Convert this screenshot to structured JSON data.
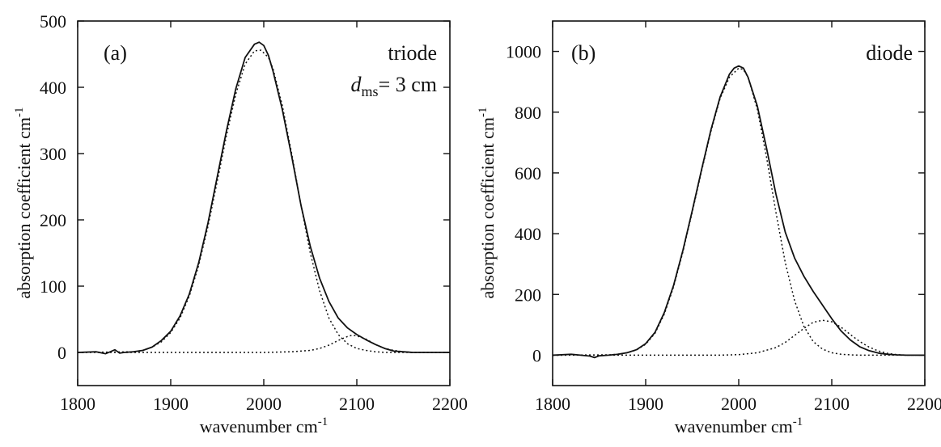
{
  "chart_data": [
    {
      "type": "line",
      "panel_label": "(a)",
      "annotation_line1": "triode",
      "annotation_d": "d",
      "annotation_sub": "ms",
      "annotation_rest": "= 3 cm",
      "xlabel": "wavenumber cm",
      "xlabel_sup": "-1",
      "ylabel": "absorption coefficient cm",
      "ylabel_sup": "-1",
      "xlim": [
        1800,
        2200
      ],
      "ylim": [
        -50,
        500
      ],
      "xticks": [
        1800,
        1900,
        2000,
        2100,
        2200
      ],
      "xtick_labels": [
        "1800",
        "1900",
        "2000",
        "2100",
        "2200"
      ],
      "yticks": [
        0,
        100,
        200,
        300,
        400,
        500
      ],
      "ytick_labels": [
        "0",
        "100",
        "200",
        "300",
        "400",
        "500"
      ],
      "grid": false,
      "series": [
        {
          "style": "solid",
          "x": [
            1800,
            1820,
            1830,
            1835,
            1840,
            1845,
            1850,
            1860,
            1870,
            1880,
            1890,
            1900,
            1910,
            1920,
            1930,
            1940,
            1950,
            1960,
            1970,
            1980,
            1990,
            1995,
            2000,
            2005,
            2010,
            2020,
            2030,
            2040,
            2050,
            2060,
            2070,
            2080,
            2090,
            2100,
            2110,
            2120,
            2130,
            2140,
            2150,
            2160,
            2170,
            2200
          ],
          "y": [
            0,
            1,
            -2,
            1,
            4,
            -1,
            0,
            1,
            3,
            8,
            18,
            32,
            55,
            88,
            135,
            195,
            265,
            335,
            398,
            445,
            465,
            468,
            463,
            448,
            424,
            366,
            296,
            222,
            160,
            112,
            77,
            52,
            37,
            27,
            19,
            12,
            6,
            2,
            1,
            0,
            0,
            0
          ]
        },
        {
          "style": "dotted",
          "x": [
            1800,
            1860,
            1870,
            1880,
            1890,
            1900,
            1910,
            1920,
            1930,
            1940,
            1950,
            1960,
            1970,
            1980,
            1990,
            1997,
            2005,
            2010,
            2020,
            2030,
            2040,
            2050,
            2060,
            2070,
            2080,
            2090,
            2100,
            2110,
            2120,
            2130,
            2140,
            2150,
            2200
          ],
          "y": [
            0,
            1,
            3,
            8,
            16,
            30,
            52,
            85,
            131,
            190,
            258,
            328,
            390,
            435,
            455,
            456,
            445,
            428,
            372,
            300,
            222,
            150,
            93,
            52,
            27,
            13,
            6,
            3,
            1,
            0,
            0,
            0,
            0
          ]
        },
        {
          "style": "dotted",
          "x": [
            1800,
            2000,
            2030,
            2050,
            2060,
            2070,
            2080,
            2090,
            2095,
            2100,
            2110,
            2120,
            2130,
            2140,
            2150,
            2160,
            2200
          ],
          "y": [
            0,
            0,
            1,
            3,
            6,
            11,
            18,
            24,
            26,
            25,
            20,
            12,
            6,
            3,
            1,
            0,
            0
          ]
        }
      ]
    },
    {
      "type": "line",
      "panel_label": "(b)",
      "annotation_line1": "diode",
      "xlabel": "wavenumber cm",
      "xlabel_sup": "-1",
      "ylabel": "absorption coefficient cm",
      "ylabel_sup": "-1",
      "xlim": [
        1800,
        2200
      ],
      "ylim": [
        -100,
        1100
      ],
      "xticks": [
        1800,
        1900,
        2000,
        2100,
        2200
      ],
      "xtick_labels": [
        "1800",
        "1900",
        "2000",
        "2100",
        "2200"
      ],
      "yticks": [
        0,
        200,
        400,
        600,
        800,
        1000
      ],
      "ytick_labels": [
        "0",
        "200",
        "400",
        "600",
        "800",
        "1000"
      ],
      "grid": false,
      "series": [
        {
          "style": "solid",
          "x": [
            1800,
            1820,
            1830,
            1840,
            1845,
            1850,
            1860,
            1870,
            1880,
            1890,
            1900,
            1910,
            1920,
            1930,
            1940,
            1950,
            1960,
            1970,
            1980,
            1990,
            1995,
            2000,
            2005,
            2010,
            2020,
            2030,
            2040,
            2050,
            2060,
            2070,
            2080,
            2090,
            2100,
            2110,
            2120,
            2130,
            2140,
            2150,
            2160,
            2170,
            2180,
            2190,
            2200
          ],
          "y": [
            0,
            3,
            0,
            -3,
            -8,
            -2,
            0,
            3,
            8,
            18,
            38,
            75,
            140,
            230,
            345,
            475,
            610,
            740,
            850,
            925,
            945,
            952,
            945,
            915,
            820,
            680,
            530,
            405,
            320,
            260,
            210,
            165,
            120,
            80,
            50,
            28,
            15,
            7,
            3,
            1,
            0,
            0,
            0
          ]
        },
        {
          "style": "dotted",
          "x": [
            1800,
            1860,
            1870,
            1880,
            1890,
            1900,
            1910,
            1920,
            1930,
            1940,
            1950,
            1960,
            1970,
            1980,
            1990,
            2000,
            2005,
            2010,
            2020,
            2030,
            2040,
            2050,
            2060,
            2070,
            2080,
            2090,
            2100,
            2110,
            2120,
            2130,
            2140,
            2200
          ],
          "y": [
            0,
            1,
            3,
            8,
            17,
            36,
            72,
            135,
            225,
            340,
            470,
            605,
            735,
            845,
            915,
            945,
            940,
            915,
            810,
            650,
            470,
            305,
            180,
            95,
            45,
            20,
            8,
            3,
            1,
            0,
            0,
            0
          ]
        },
        {
          "style": "dotted",
          "x": [
            1800,
            1980,
            2000,
            2020,
            2040,
            2050,
            2060,
            2070,
            2080,
            2090,
            2100,
            2110,
            2120,
            2130,
            2140,
            2150,
            2160,
            2170,
            2180,
            2200
          ],
          "y": [
            0,
            0,
            2,
            8,
            25,
            42,
            65,
            88,
            108,
            115,
            110,
            92,
            68,
            45,
            27,
            14,
            6,
            2,
            0,
            0
          ]
        }
      ]
    }
  ]
}
